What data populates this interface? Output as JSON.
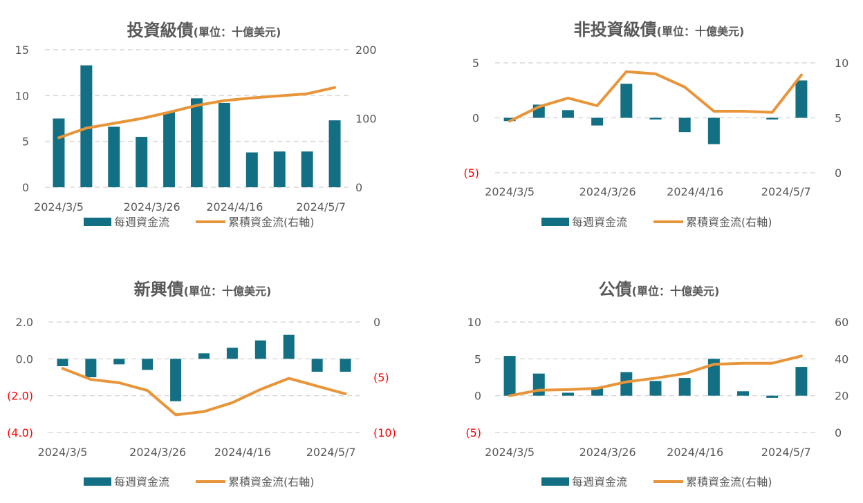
{
  "legend": {
    "bar_label": "每週資金流",
    "line_label": "累積資金流(右軸)"
  },
  "colors": {
    "bar": "#136F83",
    "line": "#E8953A",
    "grid": "#D9D9D9",
    "text": "#595959",
    "negative": "#FF0000"
  },
  "chart_data": [
    {
      "id": "ig",
      "type": "bar+line",
      "title": "投資級債",
      "title_unit": "(單位：十億美元)",
      "x_tick_labels": [
        "2024/3/5",
        "2024/3/26",
        "2024/4/16",
        "2024/5/7"
      ],
      "left_axis": {
        "min": 0,
        "max": 15,
        "ticks": [
          0,
          5,
          10,
          15
        ],
        "labels": [
          "0",
          "5",
          "10",
          "15"
        ]
      },
      "right_axis": {
        "min": 0,
        "max": 200,
        "ticks": [
          0,
          100,
          200
        ],
        "labels": [
          "0",
          "100",
          "200"
        ]
      },
      "series": [
        {
          "name": "每週資金流",
          "kind": "bar",
          "values": [
            7.5,
            13.3,
            6.6,
            5.5,
            8.2,
            9.7,
            9.2,
            3.8,
            3.9,
            3.9,
            7.3
          ]
        },
        {
          "name": "累積資金流(右軸)",
          "kind": "line",
          "values": [
            72,
            86,
            93,
            100,
            109,
            119,
            126,
            130,
            133,
            136,
            145
          ]
        }
      ]
    },
    {
      "id": "hy",
      "type": "bar+line",
      "title": "非投資級債",
      "title_unit": "(單位：十億美元)",
      "x_tick_labels": [
        "2024/3/5",
        "2024/3/26",
        "2024/4/16",
        "2024/5/7"
      ],
      "left_axis": {
        "min": -5,
        "max": 5,
        "ticks": [
          -5,
          0,
          5
        ],
        "labels": [
          "(5)",
          "0",
          "5"
        ]
      },
      "right_axis": {
        "min": 0,
        "max": 10,
        "ticks": [
          0,
          5,
          10
        ],
        "labels": [
          "0",
          "5",
          "10"
        ]
      },
      "series": [
        {
          "name": "每週資金流",
          "kind": "bar",
          "values": [
            -0.3,
            1.2,
            0.7,
            -0.7,
            3.1,
            -0.15,
            -1.3,
            -2.4,
            0,
            -0.15,
            3.4
          ]
        },
        {
          "name": "累積資金流(右軸)",
          "kind": "line",
          "values": [
            4.7,
            6.0,
            6.8,
            6.1,
            9.2,
            9.0,
            7.8,
            5.6,
            5.6,
            5.5,
            8.9
          ]
        }
      ]
    },
    {
      "id": "em",
      "type": "bar+line",
      "title": "新興債",
      "title_unit": "(單位：十億美元)",
      "x_tick_labels": [
        "2024/3/5",
        "2024/3/26",
        "2024/4/16",
        "2024/5/7"
      ],
      "left_axis": {
        "min": -4,
        "max": 2,
        "ticks": [
          -4,
          -2,
          0,
          2
        ],
        "labels": [
          "(4.0)",
          "(2.0)",
          "0.0",
          "2.0"
        ]
      },
      "right_axis": {
        "min": -10,
        "max": 0,
        "ticks": [
          -10,
          -5,
          0
        ],
        "labels": [
          "(10)",
          "(5)",
          "0"
        ]
      },
      "series": [
        {
          "name": "每週資金流",
          "kind": "bar",
          "values": [
            -0.4,
            -1.0,
            -0.3,
            -0.6,
            -2.3,
            0.3,
            0.6,
            1.0,
            1.3,
            -0.7,
            -0.7
          ]
        },
        {
          "name": "累積資金流(右軸)",
          "kind": "line",
          "values": [
            -4.2,
            -5.2,
            -5.5,
            -6.2,
            -8.4,
            -8.1,
            -7.3,
            -6.1,
            -5.1,
            -5.8,
            -6.5
          ]
        }
      ]
    },
    {
      "id": "gov",
      "type": "bar+line",
      "title": "公債",
      "title_unit": "(單位：十億美元)",
      "x_tick_labels": [
        "2024/3/5",
        "2024/3/26",
        "2024/4/16",
        "2024/5/7"
      ],
      "left_axis": {
        "min": -5,
        "max": 10,
        "ticks": [
          -5,
          0,
          5,
          10
        ],
        "labels": [
          "(5)",
          "0",
          "5",
          "10"
        ]
      },
      "right_axis": {
        "min": 0,
        "max": 60,
        "ticks": [
          0,
          20,
          40,
          60
        ],
        "labels": [
          "0",
          "20",
          "40",
          "60"
        ]
      },
      "series": [
        {
          "name": "每週資金流",
          "kind": "bar",
          "values": [
            5.4,
            3.0,
            0.4,
            1.0,
            3.2,
            2.0,
            2.4,
            5.0,
            0.6,
            -0.3,
            3.9
          ]
        },
        {
          "name": "累積資金流(右軸)",
          "kind": "line",
          "values": [
            20,
            23,
            23.3,
            24,
            27.5,
            29.5,
            32,
            37,
            37.6,
            37.6,
            41.5
          ]
        }
      ]
    }
  ]
}
